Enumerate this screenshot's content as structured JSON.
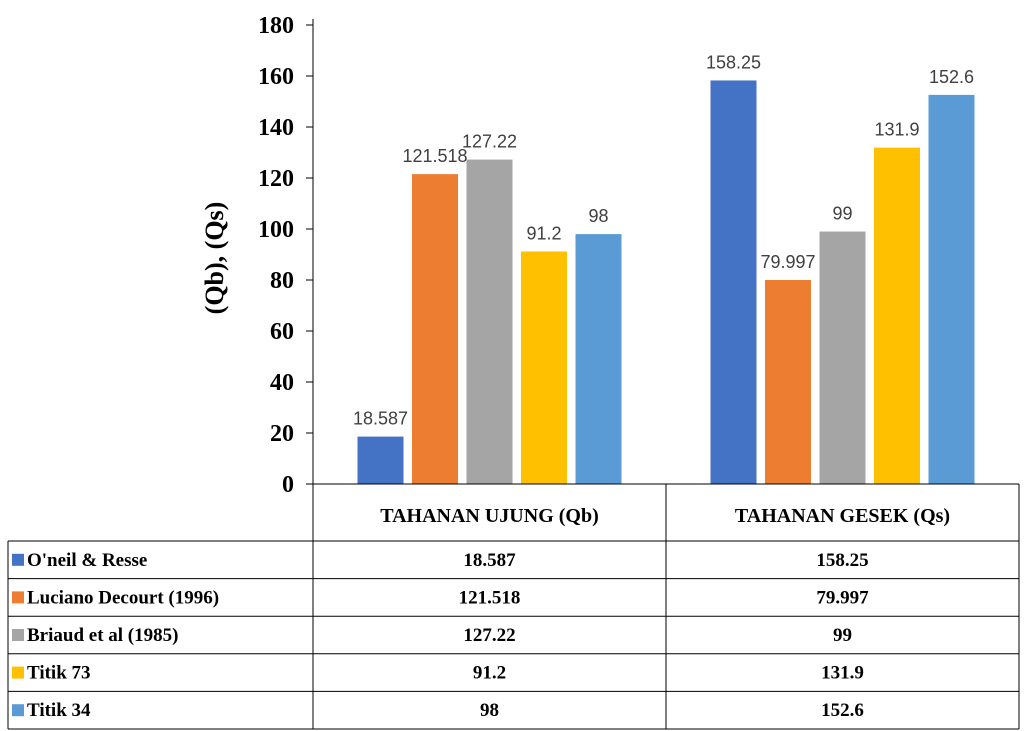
{
  "chart_data": {
    "type": "bar",
    "title": "",
    "xlabel": "",
    "ylabel": "(Qb), (Qs)",
    "ylim": [
      0,
      180
    ],
    "yticks": [
      0,
      20,
      40,
      60,
      80,
      100,
      120,
      140,
      160,
      180
    ],
    "categories": [
      "TAHANAN UJUNG (Qb)",
      "TAHANAN GESEK (Qs)"
    ],
    "series": [
      {
        "name": "O'neil & Resse",
        "values": [
          18.587,
          158.25
        ],
        "labels": [
          "18.587",
          "158.25"
        ],
        "color": "#4472C4"
      },
      {
        "name": "Luciano Decourt (1996)",
        "values": [
          121.518,
          79.997
        ],
        "labels": [
          "121.518",
          "79.997"
        ],
        "color": "#ED7D31"
      },
      {
        "name": "Briaud et al  (1985)",
        "values": [
          127.22,
          99
        ],
        "labels": [
          "127.22",
          "99"
        ],
        "color": "#A5A5A5"
      },
      {
        "name": "Titik 73",
        "values": [
          91.2,
          131.9
        ],
        "labels": [
          "91.2",
          "131.9"
        ],
        "color": "#FFC000"
      },
      {
        "name": "Titik 34",
        "values": [
          98,
          152.6
        ],
        "labels": [
          "98",
          "152.6"
        ],
        "color": "#5B9BD5"
      }
    ],
    "grid": false,
    "legend": "data-table"
  }
}
